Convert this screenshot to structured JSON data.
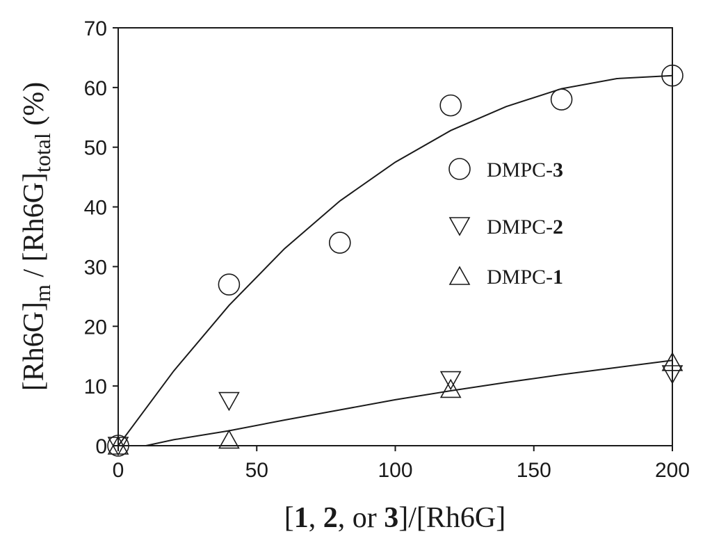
{
  "chart_data": {
    "type": "scatter",
    "xlim": [
      0,
      200
    ],
    "ylim": [
      0,
      70
    ],
    "xticks": [
      0,
      50,
      100,
      150,
      200
    ],
    "yticks": [
      0,
      10,
      20,
      30,
      40,
      50,
      60,
      70
    ],
    "xlabel": {
      "parts": [
        {
          "text": "[",
          "bold": false
        },
        {
          "text": "1",
          "bold": true
        },
        {
          "text": ", ",
          "bold": false
        },
        {
          "text": "2",
          "bold": true
        },
        {
          "text": ", or ",
          "bold": false
        },
        {
          "text": "3",
          "bold": true
        },
        {
          "text": "]/[Rh6G]",
          "bold": false
        }
      ]
    },
    "ylabel": {
      "parts": [
        {
          "text": "[Rh6G]",
          "sub": false
        },
        {
          "text": "m",
          "sub": true
        },
        {
          "text": " / [Rh6G]",
          "sub": false
        },
        {
          "text": "total",
          "sub": true
        },
        {
          "text": " (%)",
          "sub": false
        }
      ]
    },
    "grid": false,
    "legend_position": "center-right",
    "series": [
      {
        "name": "DMPC-3",
        "name_prefix": "DMPC-",
        "name_bold": "3",
        "marker": "circle",
        "x": [
          0,
          40,
          80,
          120,
          160,
          200
        ],
        "y": [
          0,
          27,
          34,
          57,
          58,
          62
        ]
      },
      {
        "name": "DMPC-2",
        "name_prefix": "DMPC-",
        "name_bold": "2",
        "marker": "triangle-down",
        "x": [
          0,
          40,
          120,
          200
        ],
        "y": [
          0,
          7.5,
          11,
          12
        ]
      },
      {
        "name": "DMPC-1",
        "name_prefix": "DMPC-",
        "name_bold": "1",
        "marker": "triangle-up",
        "x": [
          0,
          40,
          120,
          200
        ],
        "y": [
          0,
          1,
          9.5,
          14
        ]
      }
    ],
    "fits": [
      {
        "x": [
          0,
          20,
          40,
          60,
          80,
          100,
          120,
          140,
          160,
          180,
          200
        ],
        "y": [
          0,
          12.5,
          23.5,
          33,
          41,
          47.5,
          52.8,
          56.8,
          59.8,
          61.5,
          62
        ]
      },
      {
        "x": [
          10,
          20,
          40,
          60,
          80,
          100,
          120,
          140,
          160,
          180,
          200
        ],
        "y": [
          0,
          1,
          2.5,
          4.3,
          6,
          7.7,
          9.2,
          10.6,
          11.9,
          13.1,
          14.3
        ]
      }
    ],
    "colors": {
      "ink": "#1a1a1a",
      "background": "#ffffff"
    }
  }
}
